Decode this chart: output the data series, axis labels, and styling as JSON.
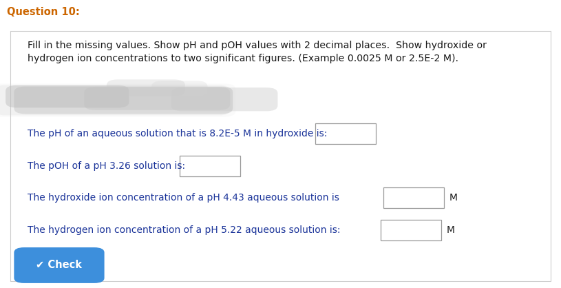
{
  "title": "Question 10:",
  "title_fontsize": 10.5,
  "title_color": "#cc6600",
  "background_color": "#ffffff",
  "border_color": "#cccccc",
  "instruction_text": "Fill in the missing values. Show pH and pOH values with 2 decimal places.  Show hydroxide or\nhydrogen ion concentrations to two significant figures. (Example 0.0025 M or 2.5E-2 M).",
  "instruction_fontsize": 10.2,
  "questions": [
    "The pH of an aqueous solution that is 8.2E-5 M in hydroxide is:",
    "The pOH of a pH 3.26 solution is:",
    "The hydroxide ion concentration of a pH 4.43 aqueous solution is",
    "The hydrogen ion concentration of a pH 5.22 aqueous solution is:"
  ],
  "question_fontsize": 10.0,
  "question_color": "#1a3399",
  "m_labels": [
    false,
    false,
    true,
    true
  ],
  "check_button_color": "#3d8fdc",
  "check_button_text": "✔ Check",
  "check_button_fontsize": 10.5,
  "blurred_region_color": "#c8c8c8",
  "text_color": "#1a1a1a"
}
